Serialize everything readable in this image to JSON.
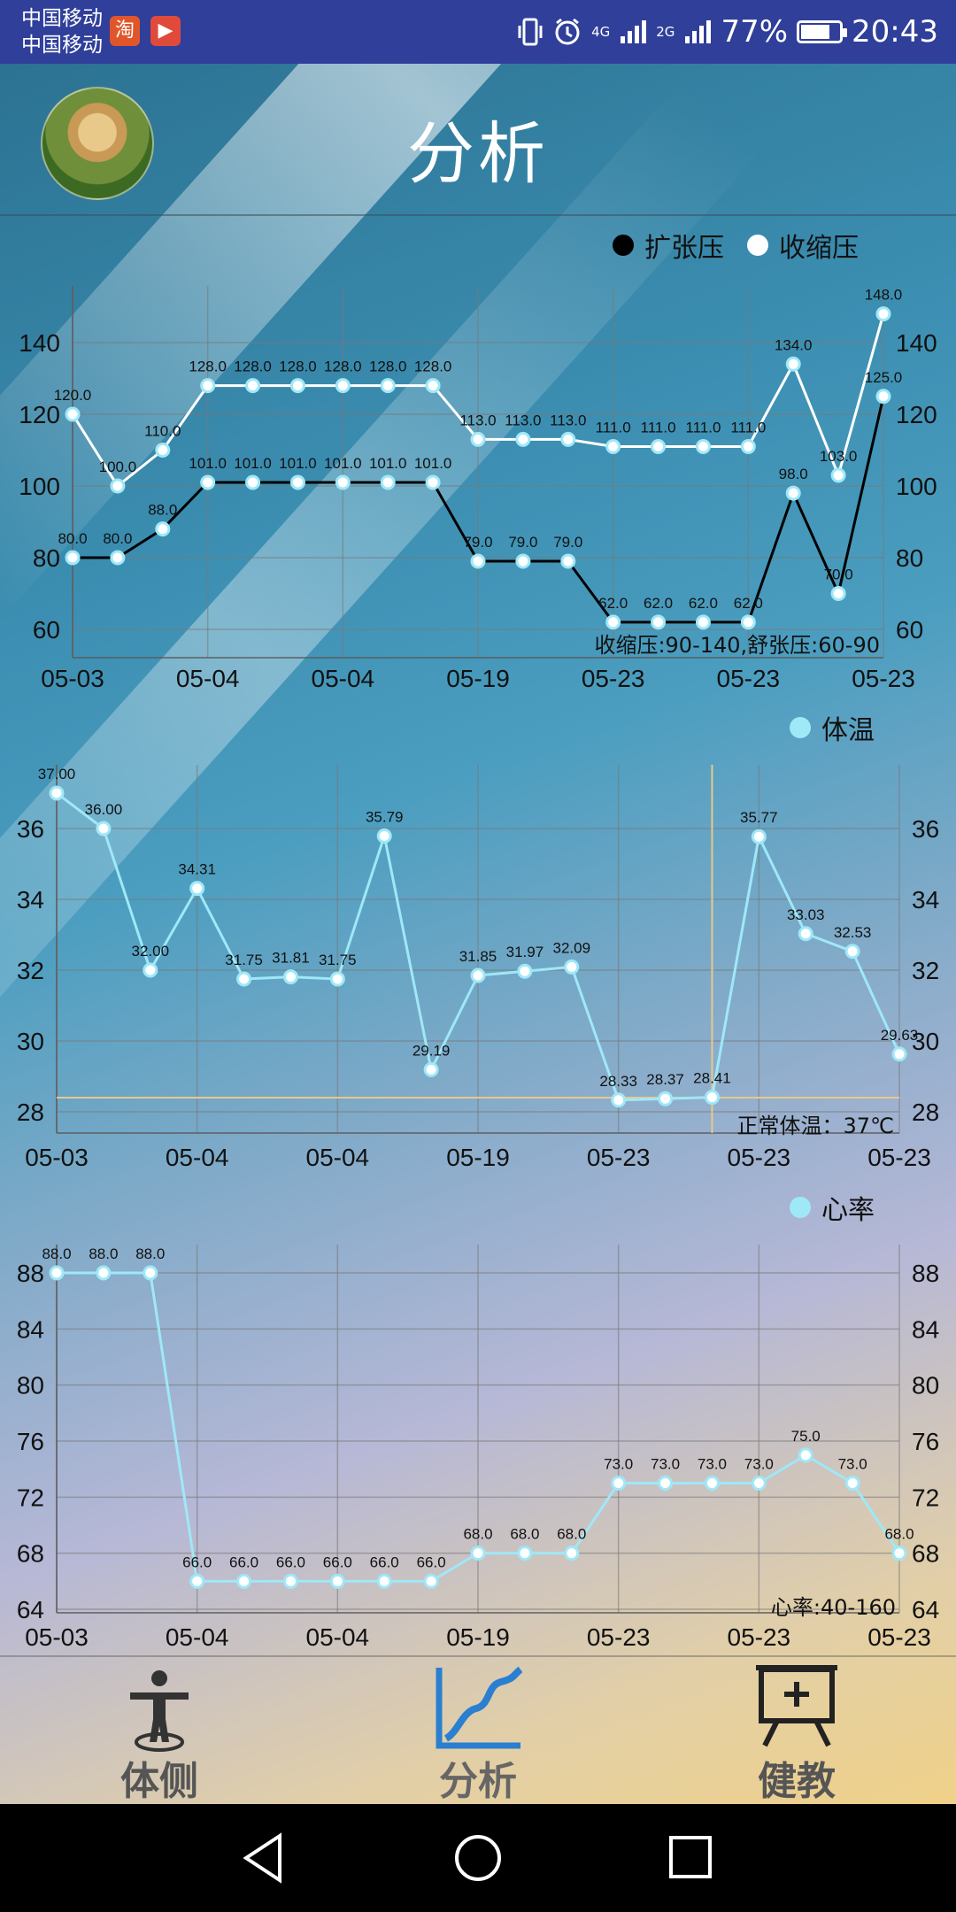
{
  "status_bar": {
    "carrier_1": "中国移动",
    "carrier_2": "中国移动",
    "app_icon_1": "淘",
    "app_icon_2": "▶",
    "network_1": "4G",
    "network_2": "2G",
    "battery": "77%",
    "battery_level": 0.77,
    "time": "20:43"
  },
  "header": {
    "title": "分析"
  },
  "colors": {
    "bp_diastolic": "#000000",
    "bp_systolic": "#ffffff",
    "temp": "#9fe8f7",
    "hr": "#9fe8f7"
  },
  "chart_data": [
    {
      "type": "line",
      "legend": [
        "扩张压",
        "收缩压"
      ],
      "x_ticks": [
        "05-03",
        "05-04",
        "05-04",
        "05-19",
        "05-23",
        "05-23",
        "05-23"
      ],
      "y_ticks": [
        "60",
        "80",
        "100",
        "120",
        "140"
      ],
      "ylim": [
        55,
        160
      ],
      "series": [
        {
          "name": "收缩压",
          "values": [
            120.0,
            100.0,
            110.0,
            128.0,
            128.0,
            128.0,
            128.0,
            128.0,
            128.0,
            113.0,
            113.0,
            113.0,
            111.0,
            111.0,
            111.0,
            111.0,
            134.0,
            103.0,
            148.0
          ]
        },
        {
          "name": "扩张压",
          "values": [
            80.0,
            80.0,
            88.0,
            101.0,
            101.0,
            101.0,
            101.0,
            101.0,
            101.0,
            79.0,
            79.0,
            79.0,
            62.0,
            62.0,
            62.0,
            62.0,
            98.0,
            70.0,
            125.0
          ]
        }
      ],
      "annotation": "收缩压:90-140,舒张压:60-90"
    },
    {
      "type": "line",
      "legend": [
        "体温"
      ],
      "x_ticks": [
        "05-03",
        "05-04",
        "05-04",
        "05-19",
        "05-23",
        "05-23",
        "05-23"
      ],
      "y_ticks": [
        "28",
        "30",
        "32",
        "34",
        "36"
      ],
      "ylim": [
        27.3,
        38.0
      ],
      "reference_line": 28.4,
      "series": [
        {
          "name": "体温",
          "values": [
            37.0,
            36.0,
            32.0,
            34.31,
            31.75,
            31.81,
            31.75,
            35.79,
            29.19,
            31.85,
            31.97,
            32.09,
            28.33,
            28.37,
            28.41,
            35.77,
            33.03,
            32.53,
            29.63
          ]
        }
      ],
      "annotation": "正常体温：37℃"
    },
    {
      "type": "line",
      "legend": [
        "心率"
      ],
      "x_ticks": [
        "05-03",
        "05-04",
        "05-04",
        "05-19",
        "05-23",
        "05-23",
        "05-23"
      ],
      "y_ticks": [
        "64",
        "68",
        "72",
        "76",
        "80",
        "84",
        "88"
      ],
      "ylim": [
        64,
        90
      ],
      "series": [
        {
          "name": "心率",
          "values": [
            88.0,
            88.0,
            88.0,
            66.0,
            66.0,
            66.0,
            66.0,
            66.0,
            66.0,
            68.0,
            68.0,
            68.0,
            73.0,
            73.0,
            73.0,
            73.0,
            75.0,
            73.0,
            68.0
          ]
        }
      ],
      "annotation": "心率:40-160"
    }
  ],
  "bottom_nav": {
    "items": [
      {
        "label": "体侧",
        "icon": "person-target-icon"
      },
      {
        "label": "分析",
        "icon": "line-chart-icon"
      },
      {
        "label": "健教",
        "icon": "presentation-board-icon"
      }
    ]
  }
}
